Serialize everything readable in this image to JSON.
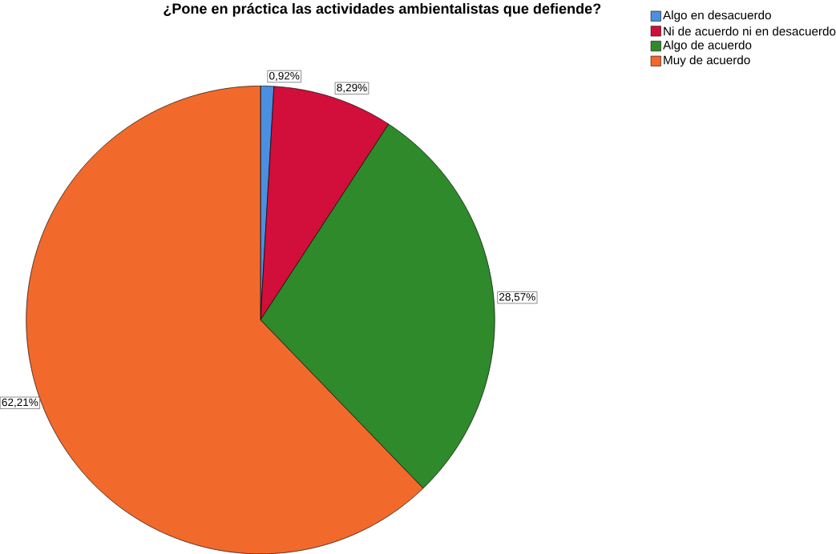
{
  "chart_data": {
    "type": "pie",
    "title": "¿Pone en práctica las actividades ambientalistas que defiende?",
    "categories": [
      "Algo en desacuerdo",
      "Ni de acuerdo ni en desacuerdo",
      "Algo de acuerdo",
      "Muy de acuerdo"
    ],
    "values": [
      0.92,
      8.29,
      28.57,
      62.21
    ],
    "colors": [
      "#4a8fe0",
      "#d10f3a",
      "#2e8a2a",
      "#f2692c"
    ],
    "value_labels": [
      "0,92%",
      "8,29%",
      "28,57%",
      "62,21%"
    ],
    "legend": "top right"
  }
}
